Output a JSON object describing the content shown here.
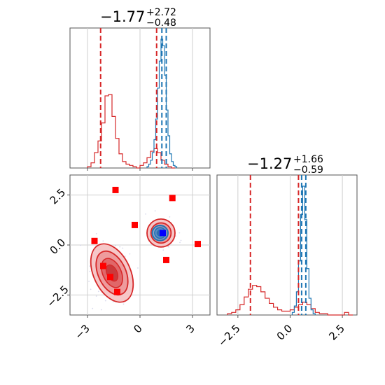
{
  "chart_data": [
    {
      "type": "histogram",
      "panel": "top-left",
      "title": {
        "median": "−1.77",
        "plus": "+2.72",
        "minus": "−0.48"
      },
      "xlim": [
        -4.0,
        4.0
      ],
      "grid": true,
      "quantile_lines_red": [
        -2.25,
        0.95
      ],
      "quantile_lines_blue": [
        1.5,
        1.25
      ],
      "series": [
        {
          "color": "#d62728",
          "bins": [
            -3.0,
            -2.8,
            -2.6,
            -2.4,
            -2.2,
            -2.0,
            -1.8,
            -1.6,
            -1.4,
            -1.2,
            -1.0,
            -0.8,
            -0.6,
            -0.4,
            -0.2,
            0.0,
            0.2,
            0.4,
            0.6,
            0.8,
            1.0,
            1.2,
            1.4,
            1.6,
            1.8,
            2.0
          ],
          "heights": [
            0.01,
            0.04,
            0.12,
            0.21,
            0.35,
            0.56,
            0.57,
            0.4,
            0.23,
            0.11,
            0.05,
            0.03,
            0.02,
            0.01,
            0.0,
            0.02,
            0.04,
            0.08,
            0.13,
            0.15,
            0.12,
            0.06,
            0.03,
            0.01,
            0.0
          ]
        },
        {
          "color": "#1f77b4",
          "bins": [
            0.4,
            0.5,
            0.6,
            0.7,
            0.8,
            0.9,
            1.0,
            1.1,
            1.2,
            1.3,
            1.4,
            1.5,
            1.6,
            1.7,
            1.8,
            1.9,
            2.0,
            2.1
          ],
          "heights": [
            0.01,
            0.03,
            0.06,
            0.12,
            0.22,
            0.38,
            0.62,
            0.83,
            1.0,
            0.95,
            0.72,
            0.45,
            0.25,
            0.11,
            0.05,
            0.02,
            0.01
          ]
        }
      ]
    },
    {
      "type": "contour",
      "panel": "bottom-left",
      "xlim": [
        -4.0,
        4.0
      ],
      "ylim": [
        -3.5,
        3.5
      ],
      "xticks": [
        "−3",
        "0",
        "3"
      ],
      "yticks": [
        "−2.5",
        "0.0",
        "2.5"
      ],
      "grid": true,
      "red_contours": [
        {
          "cx": -1.6,
          "cy": -1.4,
          "rx": 1.05,
          "ry": 1.55,
          "rot": -25
        },
        {
          "cx": 1.2,
          "cy": 0.6,
          "rx": 0.8,
          "ry": 0.7,
          "rot": 0
        }
      ],
      "blue_contour": {
        "cx": 1.15,
        "cy": 0.6,
        "rx": 0.45,
        "ry": 0.38
      },
      "red_markers": [
        {
          "x": -1.4,
          "y": 2.75
        },
        {
          "x": 1.85,
          "y": 2.35
        },
        {
          "x": -0.3,
          "y": 1.0
        },
        {
          "x": -2.6,
          "y": 0.2
        },
        {
          "x": 3.3,
          "y": 0.05
        },
        {
          "x": 1.5,
          "y": -0.75
        },
        {
          "x": -2.1,
          "y": -1.05
        },
        {
          "x": -1.7,
          "y": -1.6
        },
        {
          "x": -1.3,
          "y": -2.35
        }
      ],
      "blue_marker": {
        "x": 1.3,
        "y": 0.6
      }
    },
    {
      "type": "histogram",
      "panel": "bottom-right",
      "title": {
        "median": "−1.27",
        "plus": "+1.66",
        "minus": "−0.59"
      },
      "xlim": [
        -3.5,
        3.2
      ],
      "xticks": [
        "−2.5",
        "0.0",
        "2.5"
      ],
      "grid": true,
      "quantile_lines_red": [
        -1.9,
        0.4
      ],
      "quantile_lines_blue": [
        0.75,
        0.55
      ],
      "series": [
        {
          "color": "#d62728",
          "bins": [
            -3.0,
            -2.8,
            -2.6,
            -2.4,
            -2.2,
            -2.0,
            -1.8,
            -1.6,
            -1.4,
            -1.2,
            -1.0,
            -0.8,
            -0.6,
            -0.4,
            -0.2,
            0.0,
            0.2,
            0.4,
            0.6,
            0.8,
            1.0,
            1.2,
            1.4,
            1.6,
            1.8,
            2.0,
            2.2,
            2.4,
            2.6,
            2.8,
            3.0
          ],
          "heights": [
            0.01,
            0.02,
            0.04,
            0.08,
            0.14,
            0.2,
            0.23,
            0.22,
            0.18,
            0.13,
            0.09,
            0.06,
            0.04,
            0.03,
            0.03,
            0.04,
            0.06,
            0.08,
            0.1,
            0.08,
            0.05,
            0.02,
            0.01,
            0.01,
            0.0,
            0.0,
            0.0,
            0.0,
            0.02,
            0.0
          ]
        },
        {
          "color": "#1f77b4",
          "bins": [
            0.1,
            0.2,
            0.3,
            0.4,
            0.5,
            0.6,
            0.7,
            0.8,
            0.9,
            1.0,
            1.1,
            1.2
          ],
          "heights": [
            0.02,
            0.07,
            0.18,
            0.42,
            0.78,
            1.0,
            0.74,
            0.36,
            0.13,
            0.04,
            0.01
          ]
        }
      ]
    }
  ]
}
